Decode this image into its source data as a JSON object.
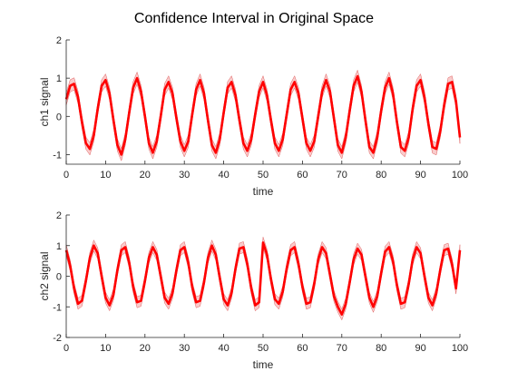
{
  "chart_data": {
    "title": "Confidence Interval in Original Space",
    "subplots": [
      {
        "type": "line",
        "xlabel": "time",
        "ylabel": "ch1 signal",
        "xlim": [
          0,
          100
        ],
        "ylim": [
          -1.25,
          2
        ],
        "xticks": [
          0,
          10,
          20,
          30,
          40,
          50,
          60,
          70,
          80,
          90,
          100
        ],
        "yticks": [
          -1,
          0,
          1,
          2
        ],
        "band_color": "#f4a0a0",
        "line_color": "#ff0000",
        "x": [
          0,
          1,
          2,
          3,
          4,
          5,
          6,
          7,
          8,
          9,
          10,
          11,
          12,
          13,
          14,
          15,
          16,
          17,
          18,
          19,
          20,
          21,
          22,
          23,
          24,
          25,
          26,
          27,
          28,
          29,
          30,
          31,
          32,
          33,
          34,
          35,
          36,
          37,
          38,
          39,
          40,
          41,
          42,
          43,
          44,
          45,
          46,
          47,
          48,
          49,
          50,
          51,
          52,
          53,
          54,
          55,
          56,
          57,
          58,
          59,
          60,
          61,
          62,
          63,
          64,
          65,
          66,
          67,
          68,
          69,
          70,
          71,
          72,
          73,
          74,
          75,
          76,
          77,
          78,
          79,
          80,
          81,
          82,
          83,
          84,
          85,
          86,
          87,
          88,
          89,
          90,
          91,
          92,
          93,
          94,
          95,
          96,
          97,
          98,
          99,
          100
        ],
        "mean": [
          0.45,
          0.8,
          0.85,
          0.5,
          -0.15,
          -0.7,
          -0.85,
          -0.5,
          0.2,
          0.8,
          0.95,
          0.6,
          -0.1,
          -0.75,
          -1.0,
          -0.6,
          0.1,
          0.75,
          1.0,
          0.65,
          0.0,
          -0.7,
          -0.95,
          -0.65,
          0.0,
          0.7,
          0.9,
          0.6,
          -0.05,
          -0.65,
          -0.9,
          -0.65,
          0.05,
          0.7,
          0.95,
          0.6,
          -0.1,
          -0.75,
          -0.95,
          -0.6,
          0.1,
          0.75,
          0.9,
          0.55,
          -0.1,
          -0.7,
          -0.9,
          -0.6,
          0.05,
          0.65,
          0.9,
          0.55,
          -0.1,
          -0.7,
          -0.9,
          -0.6,
          0.05,
          0.7,
          0.9,
          0.6,
          -0.05,
          -0.7,
          -0.9,
          -0.65,
          0.0,
          0.65,
          0.95,
          0.65,
          -0.05,
          -0.75,
          -0.95,
          -0.55,
          0.15,
          0.8,
          1.05,
          0.65,
          -0.1,
          -0.8,
          -0.95,
          -0.55,
          0.15,
          0.75,
          1.0,
          0.6,
          -0.15,
          -0.8,
          -0.9,
          -0.55,
          0.2,
          0.8,
          0.95,
          0.5,
          -0.2,
          -0.8,
          -0.85,
          -0.4,
          0.3,
          0.85,
          0.9,
          0.4,
          -0.55
        ],
        "ci_halfwidth": 0.16
      },
      {
        "type": "line",
        "xlabel": "time",
        "ylabel": "ch2 signal",
        "xlim": [
          0,
          100
        ],
        "ylim": [
          -2,
          2
        ],
        "xticks": [
          0,
          10,
          20,
          30,
          40,
          50,
          60,
          70,
          80,
          90,
          100
        ],
        "yticks": [
          -2,
          -1,
          0,
          1,
          2
        ],
        "band_color": "#f4a0a0",
        "line_color": "#ff0000",
        "x": [
          0,
          1,
          2,
          3,
          4,
          5,
          6,
          7,
          8,
          9,
          10,
          11,
          12,
          13,
          14,
          15,
          16,
          17,
          18,
          19,
          20,
          21,
          22,
          23,
          24,
          25,
          26,
          27,
          28,
          29,
          30,
          31,
          32,
          33,
          34,
          35,
          36,
          37,
          38,
          39,
          40,
          41,
          42,
          43,
          44,
          45,
          46,
          47,
          48,
          49,
          50,
          51,
          52,
          53,
          54,
          55,
          56,
          57,
          58,
          59,
          60,
          61,
          62,
          63,
          64,
          65,
          66,
          67,
          68,
          69,
          70,
          71,
          72,
          73,
          74,
          75,
          76,
          77,
          78,
          79,
          80,
          81,
          82,
          83,
          84,
          85,
          86,
          87,
          88,
          89,
          90,
          91,
          92,
          93,
          94,
          95,
          96,
          97,
          98,
          99,
          100
        ],
        "mean": [
          0.85,
          0.35,
          -0.4,
          -0.9,
          -0.8,
          -0.15,
          0.6,
          1.0,
          0.75,
          0.0,
          -0.7,
          -0.95,
          -0.6,
          0.2,
          0.85,
          0.95,
          0.45,
          -0.35,
          -0.85,
          -0.8,
          -0.15,
          0.6,
          0.95,
          0.7,
          0.0,
          -0.7,
          -0.9,
          -0.55,
          0.2,
          0.85,
          0.95,
          0.45,
          -0.35,
          -0.85,
          -0.8,
          -0.2,
          0.6,
          1.0,
          0.7,
          -0.05,
          -0.75,
          -0.95,
          -0.55,
          0.25,
          0.9,
          0.95,
          0.4,
          -0.4,
          -0.95,
          -0.85,
          1.1,
          0.7,
          -0.1,
          -0.75,
          -0.9,
          -0.5,
          0.25,
          0.85,
          0.95,
          0.4,
          -0.35,
          -0.9,
          -0.85,
          -0.25,
          0.55,
          0.95,
          0.75,
          0.05,
          -0.65,
          -1.0,
          -1.25,
          -0.9,
          -0.2,
          0.55,
          0.9,
          0.7,
          0.0,
          -0.7,
          -1.0,
          -0.65,
          0.1,
          0.8,
          0.95,
          0.5,
          -0.3,
          -0.9,
          -0.85,
          -0.25,
          0.55,
          0.95,
          0.75,
          0.0,
          -0.7,
          -0.95,
          -0.55,
          0.2,
          0.85,
          0.9,
          0.4,
          -0.4,
          0.85
        ],
        "ci_halfwidth": 0.18
      }
    ]
  }
}
